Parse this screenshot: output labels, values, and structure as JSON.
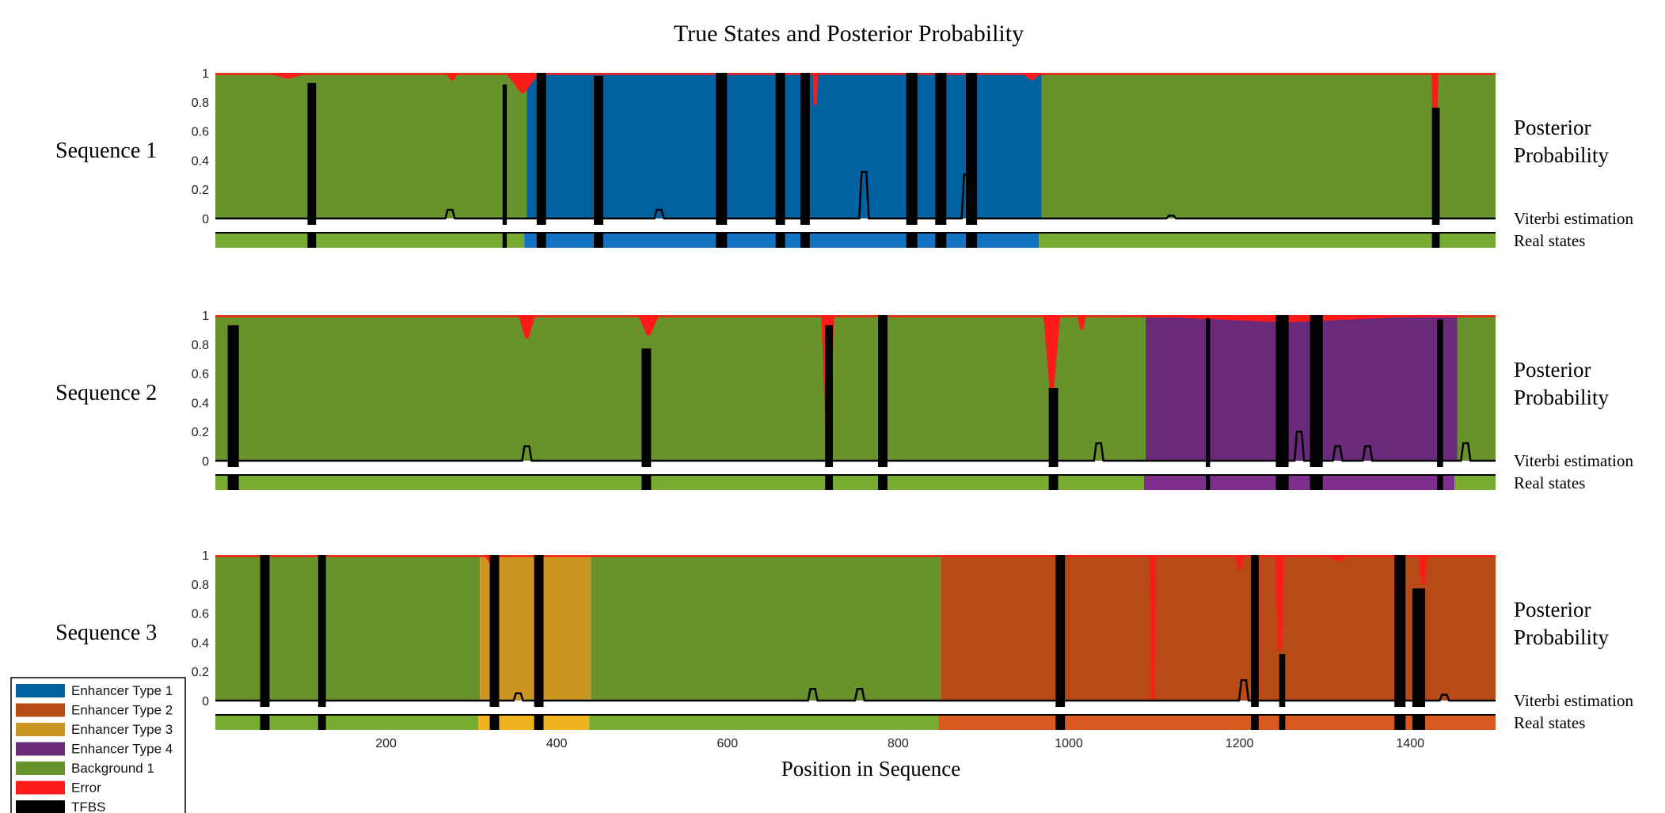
{
  "chart_data": {
    "type": "area",
    "title": "True States and Posterior Probability",
    "xlabel": "Position in Sequence",
    "xlim": [
      0,
      1500
    ],
    "x_ticks": [
      200,
      400,
      600,
      800,
      1000,
      1200,
      1400
    ],
    "ylim": [
      0,
      1
    ],
    "y_ticks": [
      "1",
      "0.8",
      "0.6",
      "0.4",
      "0.2",
      "0"
    ],
    "side_labels": {
      "posterior": [
        "Posterior",
        "Probability"
      ],
      "viterbi": "Viterbi estimation",
      "real": "Real states"
    },
    "colors": {
      "enhancer1": "#0062a0",
      "enhancer2": "#b84a17",
      "enhancer3": "#cb9521",
      "enhancer4": "#6a2a7a",
      "background": "#67922c",
      "error": "#ff1a1a",
      "tfbs": "#000000",
      "enhancer1_real": "#1173c2",
      "enhancer2_real": "#d9591e",
      "enhancer3_real": "#eeb221",
      "enhancer4_real": "#7e2f8e",
      "background_real": "#77ac30"
    },
    "legend": [
      {
        "label": "Enhancer Type 1",
        "key": "enhancer1"
      },
      {
        "label": "Enhancer Type 2",
        "key": "enhancer2"
      },
      {
        "label": "Enhancer Type 3",
        "key": "enhancer3"
      },
      {
        "label": "Enhancer Type 4",
        "key": "enhancer4"
      },
      {
        "label": "Background 1",
        "key": "background"
      },
      {
        "label": "Error",
        "key": "error"
      },
      {
        "label": "TFBS",
        "key": "tfbs"
      }
    ],
    "sequences": [
      {
        "name": "Sequence 1",
        "posterior_regions": [
          {
            "state": "background",
            "start": 0,
            "end": 365
          },
          {
            "state": "enhancer1",
            "start": 365,
            "end": 968
          },
          {
            "state": "background",
            "start": 968,
            "end": 1500
          }
        ],
        "real_states": [
          {
            "state": "background",
            "start": 0,
            "end": 362
          },
          {
            "state": "enhancer1",
            "start": 362,
            "end": 965
          },
          {
            "state": "background",
            "start": 965,
            "end": 1500
          }
        ],
        "error_spikes": [
          {
            "start": 60,
            "end": 110,
            "depth": 0.04
          },
          {
            "start": 270,
            "end": 285,
            "depth": 0.05
          },
          {
            "start": 340,
            "end": 380,
            "depth": 0.14
          },
          {
            "start": 700,
            "end": 706,
            "depth": 0.22
          },
          {
            "start": 945,
            "end": 968,
            "depth": 0.05
          },
          {
            "start": 1425,
            "end": 1433,
            "depth": 0.75
          }
        ],
        "tfbs": [
          {
            "pos": 113,
            "width": 10,
            "peak": 0.93,
            "real": true
          },
          {
            "pos": 339,
            "width": 5,
            "peak": 0.92,
            "real": true
          },
          {
            "pos": 382,
            "width": 11,
            "peak": 1.0,
            "real": true
          },
          {
            "pos": 449,
            "width": 11,
            "peak": 0.98,
            "real": true
          },
          {
            "pos": 593,
            "width": 13,
            "peak": 1.0,
            "real": true
          },
          {
            "pos": 662,
            "width": 11,
            "peak": 1.0,
            "real": true
          },
          {
            "pos": 691,
            "width": 11,
            "peak": 1.0,
            "real": true
          },
          {
            "pos": 816,
            "width": 13,
            "peak": 1.0,
            "real": true
          },
          {
            "pos": 850,
            "width": 13,
            "peak": 1.0,
            "real": true
          },
          {
            "pos": 886,
            "width": 13,
            "peak": 1.0,
            "real": true
          },
          {
            "pos": 1430,
            "width": 9,
            "peak": 0.76,
            "real": true
          }
        ],
        "small_peaks": [
          {
            "pos": 275,
            "h": 0.06
          },
          {
            "pos": 760,
            "h": 0.32
          },
          {
            "pos": 880,
            "h": 0.3
          },
          {
            "pos": 520,
            "h": 0.06
          },
          {
            "pos": 1120,
            "h": 0.02
          }
        ]
      },
      {
        "name": "Sequence 2",
        "posterior_regions": [
          {
            "state": "background",
            "start": 0,
            "end": 1090
          },
          {
            "state": "enhancer4",
            "start": 1090,
            "end": 1455
          },
          {
            "state": "background",
            "start": 1455,
            "end": 1500
          }
        ],
        "real_states": [
          {
            "state": "background",
            "start": 0,
            "end": 1088
          },
          {
            "state": "enhancer4",
            "start": 1088,
            "end": 1452
          },
          {
            "state": "background",
            "start": 1452,
            "end": 1500
          }
        ],
        "error_spikes": [
          {
            "start": 355,
            "end": 375,
            "depth": 0.16
          },
          {
            "start": 495,
            "end": 520,
            "depth": 0.14
          },
          {
            "start": 710,
            "end": 725,
            "depth": 0.95
          },
          {
            "start": 970,
            "end": 990,
            "depth": 0.55
          },
          {
            "start": 1010,
            "end": 1020,
            "depth": 0.1
          },
          {
            "start": 1060,
            "end": 1445,
            "depth": 0.05
          }
        ],
        "tfbs": [
          {
            "pos": 21,
            "width": 13,
            "peak": 0.93,
            "real": true
          },
          {
            "pos": 505,
            "width": 11,
            "peak": 0.77,
            "real": true
          },
          {
            "pos": 719,
            "width": 9,
            "peak": 0.93,
            "real": true
          },
          {
            "pos": 782,
            "width": 11,
            "peak": 1.0,
            "real": true
          },
          {
            "pos": 982,
            "width": 11,
            "peak": 0.5,
            "real": true
          },
          {
            "pos": 1163,
            "width": 5,
            "peak": 0.98,
            "real": true
          },
          {
            "pos": 1250,
            "width": 15,
            "peak": 1.0,
            "real": true
          },
          {
            "pos": 1290,
            "width": 15,
            "peak": 1.0,
            "real": true
          },
          {
            "pos": 1435,
            "width": 7,
            "peak": 0.97,
            "real": true
          }
        ],
        "small_peaks": [
          {
            "pos": 365,
            "h": 0.1
          },
          {
            "pos": 1035,
            "h": 0.12
          },
          {
            "pos": 1270,
            "h": 0.2
          },
          {
            "pos": 1315,
            "h": 0.1
          },
          {
            "pos": 1350,
            "h": 0.1
          },
          {
            "pos": 1465,
            "h": 0.12
          }
        ]
      },
      {
        "name": "Sequence 3",
        "posterior_regions": [
          {
            "state": "background",
            "start": 0,
            "end": 310
          },
          {
            "state": "enhancer3",
            "start": 310,
            "end": 440
          },
          {
            "state": "background",
            "start": 440,
            "end": 850
          },
          {
            "state": "enhancer2",
            "start": 850,
            "end": 1500
          }
        ],
        "real_states": [
          {
            "state": "background",
            "start": 0,
            "end": 308
          },
          {
            "state": "enhancer3",
            "start": 308,
            "end": 438
          },
          {
            "state": "background",
            "start": 438,
            "end": 847
          },
          {
            "state": "enhancer2",
            "start": 847,
            "end": 1500
          }
        ],
        "error_spikes": [
          {
            "start": 315,
            "end": 330,
            "depth": 0.05
          },
          {
            "start": 1095,
            "end": 1102,
            "depth": 1.0
          },
          {
            "start": 1195,
            "end": 1205,
            "depth": 0.1
          },
          {
            "start": 1242,
            "end": 1252,
            "depth": 0.65
          },
          {
            "start": 1410,
            "end": 1420,
            "depth": 0.2
          },
          {
            "start": 1300,
            "end": 1330,
            "depth": 0.04
          }
        ],
        "tfbs": [
          {
            "pos": 58,
            "width": 11,
            "peak": 1.0,
            "real": true
          },
          {
            "pos": 125,
            "width": 9,
            "peak": 1.0,
            "real": true
          },
          {
            "pos": 327,
            "width": 11,
            "peak": 1.0,
            "real": true
          },
          {
            "pos": 379,
            "width": 11,
            "peak": 1.0,
            "real": true
          },
          {
            "pos": 990,
            "width": 11,
            "peak": 1.0,
            "real": true
          },
          {
            "pos": 1218,
            "width": 9,
            "peak": 1.0,
            "real": true
          },
          {
            "pos": 1250,
            "width": 7,
            "peak": 0.32,
            "real": true
          },
          {
            "pos": 1388,
            "width": 13,
            "peak": 1.0,
            "real": true
          },
          {
            "pos": 1410,
            "width": 15,
            "peak": 0.77,
            "real": true
          }
        ],
        "small_peaks": [
          {
            "pos": 355,
            "h": 0.05
          },
          {
            "pos": 700,
            "h": 0.08
          },
          {
            "pos": 755,
            "h": 0.08
          },
          {
            "pos": 1205,
            "h": 0.14
          },
          {
            "pos": 1440,
            "h": 0.04
          }
        ]
      }
    ]
  }
}
